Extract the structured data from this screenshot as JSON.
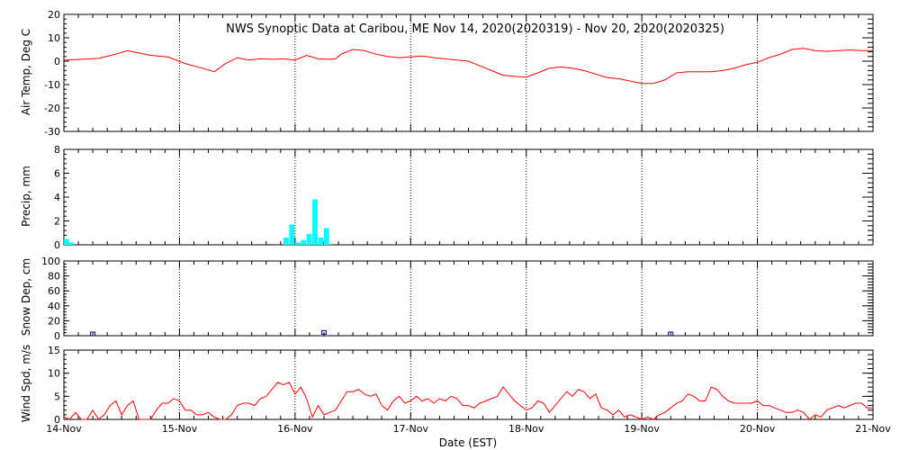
{
  "title": "NWS Synoptic Data at Caribou, ME    Nov 14, 2020(2020319) - Nov 20, 2020(2020325)",
  "xlabel": "Date (EST)",
  "x_ticks": [
    "14-Nov",
    "15-Nov",
    "16-Nov",
    "17-Nov",
    "18-Nov",
    "19-Nov",
    "20-Nov",
    "21-Nov"
  ],
  "colors": {
    "temp": "#ff0000",
    "precip": "#00ffff",
    "snow": "#000080",
    "wind": "#ff0000",
    "axes": "#000000"
  },
  "chart_data": [
    {
      "type": "line",
      "ylabel": "Air Temp, Deg C",
      "ylim": [
        -30,
        20
      ],
      "yticks": [
        -30,
        -20,
        -10,
        0,
        10,
        20
      ],
      "x_unit": "days since Nov 14 00:00 EST",
      "x": [
        0,
        0.15,
        0.3,
        0.45,
        0.55,
        0.65,
        0.75,
        0.9,
        1.05,
        1.2,
        1.3,
        1.4,
        1.5,
        1.6,
        1.7,
        1.8,
        1.9,
        2.0,
        2.1,
        2.2,
        2.3,
        2.35,
        2.4,
        2.5,
        2.6,
        2.7,
        2.8,
        2.9,
        3.0,
        3.1,
        3.2,
        3.3,
        3.4,
        3.5,
        3.6,
        3.7,
        3.8,
        3.9,
        4.0,
        4.1,
        4.2,
        4.3,
        4.4,
        4.5,
        4.6,
        4.7,
        4.8,
        4.9,
        5.0,
        5.1,
        5.2,
        5.25,
        5.3,
        5.4,
        5.5,
        5.6,
        5.7,
        5.8,
        5.9,
        6.0,
        6.1,
        6.2,
        6.3,
        6.4,
        6.5,
        6.6,
        6.7,
        6.8,
        6.9,
        7.0
      ],
      "values": [
        0.5,
        0.8,
        1.2,
        3,
        4.5,
        3.5,
        2.5,
        1.8,
        -1,
        -3,
        -4.5,
        -1,
        1.5,
        0.5,
        1,
        0.8,
        1,
        0.5,
        2.5,
        1,
        0.8,
        1,
        3,
        5,
        4.5,
        3,
        2,
        1.5,
        1.8,
        2.2,
        1.5,
        1,
        0.5,
        0,
        -2,
        -4,
        -6,
        -6.5,
        -6.8,
        -5,
        -3,
        -2.5,
        -3,
        -4,
        -5.5,
        -7,
        -7.5,
        -8.5,
        -9.5,
        -9.5,
        -8,
        -6.5,
        -5,
        -4.5,
        -4.5,
        -4.5,
        -4,
        -3,
        -1.5,
        -0.5,
        1.5,
        3,
        5,
        5.5,
        4.5,
        4.2,
        4.5,
        4.8,
        4.5,
        4.5
      ]
    },
    {
      "type": "bar",
      "ylabel": "Precip, mm",
      "ylim": [
        0,
        8
      ],
      "yticks": [
        0,
        2,
        4,
        6,
        8
      ],
      "x_unit": "days since Nov 14 00:00 EST",
      "x": [
        0,
        0.04,
        1.9,
        1.95,
        2.0,
        2.05,
        2.1,
        2.15,
        2.2,
        2.25
      ],
      "values": [
        0.5,
        0.2,
        0.6,
        1.7,
        0.2,
        0.4,
        0.9,
        3.8,
        0.6,
        1.4
      ],
      "bar_width_days": 0.045
    },
    {
      "type": "scatter",
      "ylabel": "Snow Dep, cm",
      "ylim": [
        0,
        100
      ],
      "yticks": [
        0,
        20,
        40,
        60,
        80,
        100
      ],
      "x_unit": "days since Nov 14 00:00 EST",
      "x": [
        0.25,
        2.25,
        5.25
      ],
      "values": [
        0,
        2,
        0
      ]
    },
    {
      "type": "line",
      "ylabel": "Wind Spd, m/s",
      "ylim": [
        0,
        15
      ],
      "yticks": [
        0,
        5,
        10,
        15
      ],
      "x_unit": "days since Nov 14 00:00 EST",
      "x": [
        0,
        0.05,
        0.1,
        0.15,
        0.2,
        0.25,
        0.3,
        0.35,
        0.4,
        0.45,
        0.5,
        0.55,
        0.6,
        0.65,
        0.7,
        0.75,
        0.8,
        0.85,
        0.9,
        0.95,
        1.0,
        1.05,
        1.1,
        1.15,
        1.2,
        1.25,
        1.3,
        1.35,
        1.4,
        1.45,
        1.5,
        1.55,
        1.6,
        1.65,
        1.7,
        1.75,
        1.8,
        1.85,
        1.9,
        1.95,
        2.0,
        2.05,
        2.1,
        2.15,
        2.2,
        2.25,
        2.3,
        2.35,
        2.4,
        2.45,
        2.5,
        2.55,
        2.6,
        2.65,
        2.7,
        2.75,
        2.8,
        2.85,
        2.9,
        2.95,
        3.0,
        3.05,
        3.1,
        3.15,
        3.2,
        3.25,
        3.3,
        3.35,
        3.4,
        3.45,
        3.5,
        3.55,
        3.6,
        3.65,
        3.7,
        3.75,
        3.8,
        3.85,
        3.9,
        3.95,
        4.0,
        4.05,
        4.1,
        4.15,
        4.2,
        4.25,
        4.3,
        4.35,
        4.4,
        4.45,
        4.5,
        4.55,
        4.6,
        4.65,
        4.7,
        4.75,
        4.8,
        4.85,
        4.9,
        4.95,
        5.0,
        5.05,
        5.1,
        5.15,
        5.2,
        5.25,
        5.3,
        5.35,
        5.4,
        5.45,
        5.5,
        5.55,
        5.6,
        5.65,
        5.7,
        5.75,
        5.8,
        5.85,
        5.9,
        5.95,
        6.0,
        6.05,
        6.1,
        6.15,
        6.2,
        6.25,
        6.3,
        6.35,
        6.4,
        6.45,
        6.5,
        6.55,
        6.6,
        6.65,
        6.7,
        6.75,
        6.8,
        6.85,
        6.9,
        6.95,
        7.0
      ],
      "values": [
        0.5,
        0,
        1.5,
        0,
        0,
        2,
        0,
        1,
        3,
        4,
        1,
        3,
        4,
        0,
        0,
        0,
        2,
        3.5,
        3.5,
        4.5,
        4,
        2,
        2,
        1,
        1,
        1.5,
        0.5,
        0,
        0,
        1,
        3,
        3.5,
        3.5,
        3,
        4.5,
        5,
        6.5,
        8,
        7.5,
        8,
        5.5,
        7,
        4.5,
        0.5,
        3,
        1,
        1.5,
        2,
        4,
        6,
        6,
        6.5,
        5.5,
        5,
        5.5,
        3,
        2,
        4,
        5,
        3.5,
        4,
        5,
        4,
        4.5,
        3.5,
        4.5,
        4,
        5,
        4.5,
        3,
        3,
        2.5,
        3.5,
        4,
        4.5,
        5,
        7,
        5.5,
        4,
        3,
        2,
        2.5,
        4,
        3.5,
        1.5,
        3,
        4.5,
        6,
        5,
        6.5,
        6,
        4.5,
        5.5,
        2.5,
        2,
        1,
        2,
        0.5,
        1,
        0.5,
        0,
        0.5,
        0,
        1,
        1.5,
        2.5,
        3.5,
        4,
        5.5,
        5,
        4,
        4,
        7,
        6.5,
        5,
        4,
        3.5,
        3.5,
        3.5,
        3.5,
        4,
        3,
        3,
        2.5,
        2,
        1.5,
        1.5,
        2,
        1.5,
        0,
        1,
        0.5,
        2,
        2.5,
        3,
        2.5,
        3,
        3.5,
        3.5,
        2.5,
        2.5
      ]
    }
  ]
}
